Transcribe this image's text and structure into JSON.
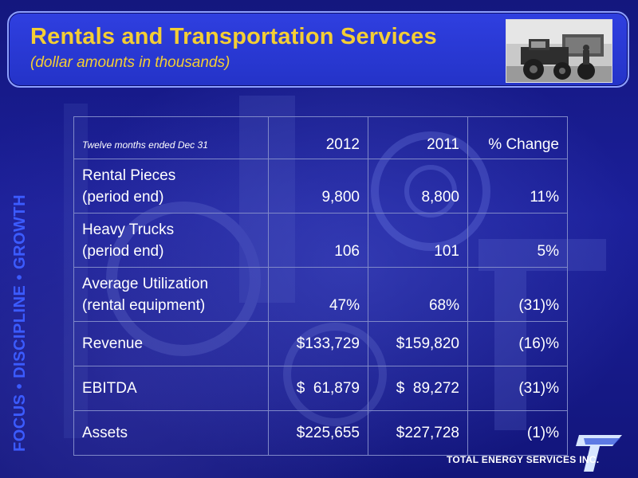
{
  "header": {
    "title": "Rentals and Transportation Services",
    "subtitle": "(dollar amounts in thousands)"
  },
  "side_text": "FOCUS • DISCIPLINE • GROWTH",
  "table": {
    "header": {
      "label": "Twelve months ended Dec 31",
      "y2012": "2012",
      "y2011": "2011",
      "change": "% Change"
    },
    "rows": [
      {
        "line1": "Rental Pieces",
        "line2": "(period end)",
        "y2012": "9,800",
        "y2011": "8,800",
        "change": "11%"
      },
      {
        "line1": "Heavy Trucks",
        "line2": "(period end)",
        "y2012": "106",
        "y2011": "101",
        "change": "5%"
      },
      {
        "line1": "Average Utilization",
        "line2": "(rental equipment)",
        "y2012": "47%",
        "y2011": "68%",
        "change": "(31)%"
      },
      {
        "line1": "Revenue",
        "y2012": "$133,729",
        "y2011": "$159,820",
        "change": "(16)%"
      },
      {
        "line1": "EBITDA",
        "y2012": "$  61,879",
        "y2011": "$  89,272",
        "change": "(31)%"
      },
      {
        "line1": "Assets",
        "y2012": "$225,655",
        "y2011": "$227,728",
        "change": "(1)%"
      }
    ]
  },
  "footer": {
    "logo_text": "TOTAL ENERGY SERVICES INC."
  },
  "colors": {
    "title": "#f4ce34",
    "header_bg": "#2433c8",
    "side_text": "#3b5bff",
    "page_bg": "#1b1f9a"
  },
  "icons": {
    "photo": "truck-photo",
    "logo": "total-energy-logo"
  }
}
